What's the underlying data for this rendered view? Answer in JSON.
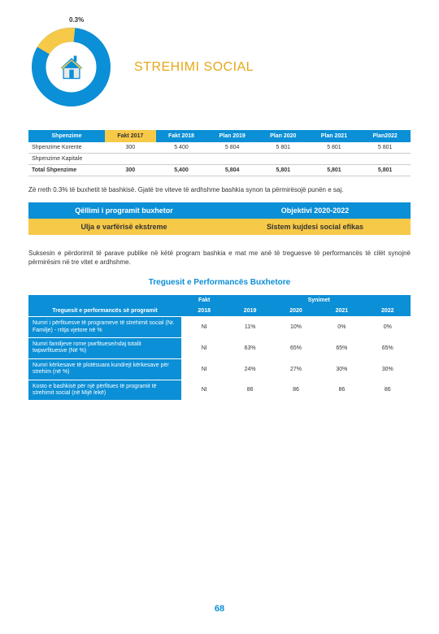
{
  "donut": {
    "label": "0.3%",
    "segments": [
      {
        "color": "#f7c948",
        "fraction": 0.18
      },
      {
        "color": "#0b8fd6",
        "fraction": 0.82
      }
    ],
    "ring_width": 17,
    "inner_bg": "#ffffff"
  },
  "title": "STREHIMI SOCIAL",
  "spend_table": {
    "headers": [
      "Shpenzime",
      "Fakt 2017",
      "Fakt 2018",
      "Plan 2019",
      "Plan 2020",
      "Plan 2021",
      "Plan2022"
    ],
    "rows": [
      [
        "Shpenzime Korente",
        "300",
        "5 400",
        "5 804",
        "5 801",
        "5 801",
        "5 801"
      ],
      [
        "Shpenzime Kapitale",
        "",
        "",
        "",
        "",
        "",
        ""
      ],
      [
        "Total Shpenzime",
        "300",
        "5,400",
        "5,804",
        "5,801",
        "5,801",
        "5,801"
      ]
    ]
  },
  "paragraph1": "Zë rreth 0.3% të buxhetit të bashkisë. Gjatë tre viteve të ardhshme bashkia synon ta përmirësojë punën e saj.",
  "obj_table": {
    "headers": [
      "Qëllimi i programit buxhetor",
      "Objektivi 2020-2022"
    ],
    "row": [
      "Ulja e varfërisë ekstreme",
      "Sistem kujdesi social efikas"
    ]
  },
  "paragraph2": "Suksesin e përdorimit të parave publike në këtë program bashkia e mat me anë të treguesve të performancës të cilët synojnë përmirësim në tre vitet e ardhshme.",
  "section_title": "Treguesit e Performancës Buxhetore",
  "perf_table": {
    "group_headers": [
      "",
      "Fakt",
      "Synimet"
    ],
    "year_headers": [
      "2018",
      "2019",
      "2020",
      "2021",
      "2022"
    ],
    "indicator_header": "Treguesit e performancës së programit",
    "rows": [
      {
        "label": "Numri i përfituesve të programeve të strehimit social (Nr. Familje) - rritja vjetore në %",
        "values": [
          "NI",
          "11%",
          "10%",
          "0%",
          "0%"
        ]
      },
      {
        "label": "Numri familjeve rome pwrfituese/ndaj totalit twpwrfituesve (Në %)",
        "values": [
          "NI",
          "63%",
          "65%",
          "65%",
          "65%"
        ]
      },
      {
        "label": "Numri kërkesave të plotësuara kundrejt kërkesave për strehim (në %)",
        "values": [
          "NI",
          "24%",
          "27%",
          "30%",
          "30%"
        ]
      },
      {
        "label": "Kosto e bashkisë për një përfitues të programit të strehimit social (në Mijë lekë)",
        "values": [
          "NI",
          "86",
          "86",
          "86",
          "86"
        ]
      }
    ]
  },
  "page_number": "68"
}
